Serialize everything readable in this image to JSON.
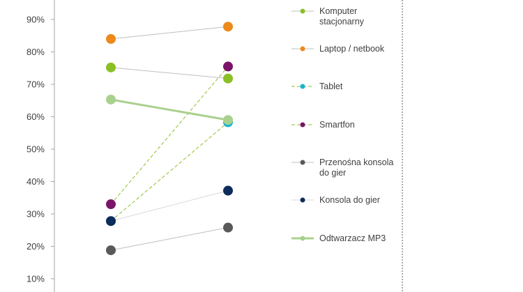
{
  "chart_data": {
    "type": "line",
    "categories": [
      "",
      ""
    ],
    "y_tick_labels": [
      "10%",
      "20%",
      "30%",
      "40%",
      "50%",
      "60%",
      "70%",
      "80%",
      "90%"
    ],
    "ylim": [
      8,
      97
    ],
    "grid": false,
    "legend_position": "right",
    "series": [
      {
        "name": "Komputer stacjonarny",
        "name_lines": [
          "Komputer",
          "stacjonarny"
        ],
        "values": [
          75.2,
          71.8
        ],
        "color": "#8cbf26",
        "line_color": "#bfbfbf",
        "dashed": false,
        "thick": false
      },
      {
        "name": "Laptop / netbook",
        "name_lines": [
          "Laptop / netbook"
        ],
        "values": [
          84.0,
          87.8
        ],
        "color": "#ec8a1b",
        "line_color": "#bfbfbf",
        "dashed": false,
        "thick": false
      },
      {
        "name": "Tablet",
        "name_lines": [
          "Tablet"
        ],
        "values": [
          27.8,
          58.3
        ],
        "color": "#19b4d2",
        "line_color": "#8cbf26",
        "dashed": true,
        "thick": false
      },
      {
        "name": "Smartfon",
        "name_lines": [
          "Smartfon"
        ],
        "values": [
          33.0,
          75.5
        ],
        "color": "#7b1469",
        "line_color": "#8cbf26",
        "dashed": true,
        "thick": false
      },
      {
        "name": "Przenośna konsola do gier",
        "name_lines": [
          "Przenośna konsola",
          "do gier"
        ],
        "values": [
          18.8,
          25.8
        ],
        "color": "#595959",
        "line_color": "#bfbfbf",
        "dashed": false,
        "thick": false
      },
      {
        "name": "Konsola do gier",
        "name_lines": [
          "Konsola do gier"
        ],
        "values": [
          27.8,
          37.2
        ],
        "color": "#0d2c5a",
        "line_color": "#d9d9d9",
        "dashed": false,
        "thick": false
      },
      {
        "name": "Odtwarzacz MP3",
        "name_lines": [
          "Odtwarzacz MP3"
        ],
        "values": [
          65.3,
          59.0
        ],
        "color": "#a9d18e",
        "line_color": "#a9d18e",
        "dashed": false,
        "thick": true
      }
    ]
  }
}
